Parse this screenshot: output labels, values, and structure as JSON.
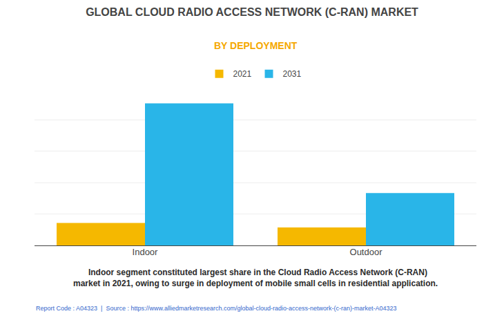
{
  "chart_data": {
    "type": "bar",
    "title": "GLOBAL CLOUD RADIO ACCESS NETWORK (C-RAN) MARKET",
    "subtitle": "BY DEPLOYMENT",
    "categories": [
      "Indoor",
      "Outdoor"
    ],
    "series": [
      {
        "name": "2021",
        "color": "#F5B800",
        "values": [
          1.5,
          1.2
        ]
      },
      {
        "name": "2031",
        "color": "#29B5E8",
        "values": [
          9.5,
          3.5
        ]
      }
    ],
    "ylim": [
      0,
      10.5
    ],
    "yticks": [
      0,
      2.1,
      4.2,
      6.3,
      8.4,
      10.5
    ],
    "grid": true,
    "tick_labels": "x",
    "legend": "top",
    "annotations": [
      "  Indoor segment constituted largest share in the Cloud Radio Access Network (C-RAN)\nmarket in 2021, owing to surge in deployment of mobile small cells in residential application.",
      "Report Code : A04323  |  Source : https://www.alliedmarketresearch.com/global-cloud-radio-access-network-(c-ran)-market-A04323"
    ]
  }
}
